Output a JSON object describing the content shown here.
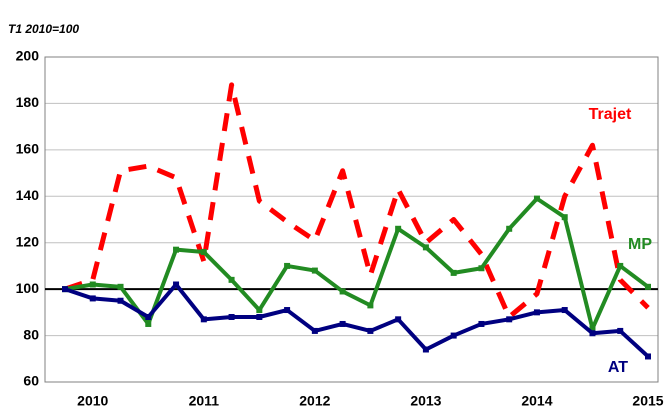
{
  "chart_data": {
    "type": "line",
    "subtitle": "T1 2010=100",
    "categories": [
      null,
      "2010",
      null,
      null,
      null,
      "2011",
      null,
      null,
      null,
      "2012",
      null,
      null,
      null,
      "2013",
      null,
      null,
      null,
      "2014",
      null,
      null,
      null,
      "2015"
    ],
    "series": [
      {
        "name": "Trajet",
        "color": "#ff0000",
        "dash": true,
        "values": [
          100,
          104,
          151,
          153,
          148,
          112,
          188,
          138,
          129,
          121,
          151,
          106,
          143,
          120,
          130,
          115,
          88,
          98,
          140,
          162,
          104,
          92
        ]
      },
      {
        "name": "MP",
        "color": "#228b22",
        "dash": false,
        "values": [
          100,
          102,
          101,
          85,
          117,
          116,
          104,
          91,
          110,
          108,
          99,
          93,
          126,
          118,
          107,
          109,
          126,
          139,
          131,
          83,
          110,
          101
        ]
      },
      {
        "name": "AT",
        "color": "#000080",
        "dash": false,
        "values": [
          100,
          96,
          95,
          88,
          102,
          87,
          88,
          88,
          91,
          82,
          85,
          82,
          87,
          74,
          80,
          85,
          87,
          90,
          91,
          81,
          82,
          71
        ]
      }
    ],
    "ylim": [
      60,
      200
    ],
    "yticks": [
      60,
      80,
      100,
      120,
      140,
      160,
      180,
      200
    ],
    "grid": true,
    "hline": 100
  }
}
